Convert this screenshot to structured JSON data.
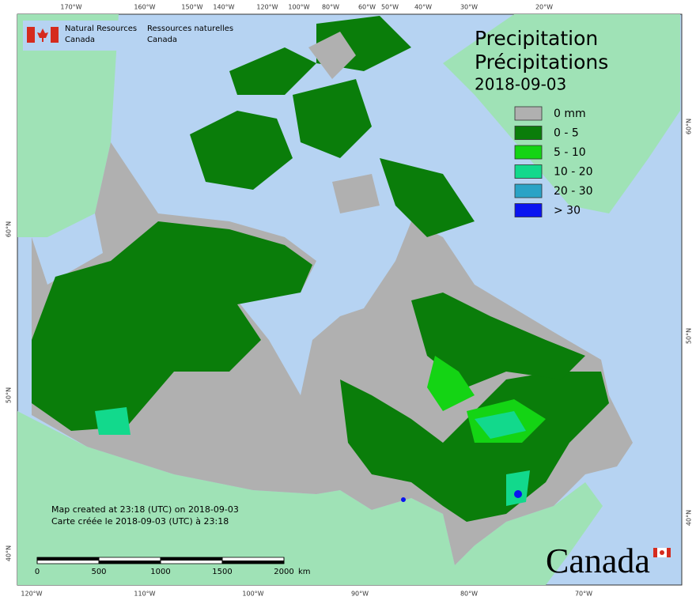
{
  "header": {
    "org_en": [
      "Natural Resources",
      "Canada"
    ],
    "org_fr": [
      "Ressources naturelles",
      "Canada"
    ]
  },
  "title": {
    "en": "Precipitation",
    "fr": "Précipitations",
    "date": "2018-09-03"
  },
  "legend": [
    {
      "label": "0 mm",
      "color": "#b0b0b0"
    },
    {
      "label": "0 - 5",
      "color": "#0a7d0a"
    },
    {
      "label": "5 - 10",
      "color": "#14d414"
    },
    {
      "label": "10 - 20",
      "color": "#12d98c"
    },
    {
      "label": "20 - 30",
      "color": "#2aa3c6"
    },
    {
      "label": "> 30",
      "color": "#0a14f0"
    }
  ],
  "graticule": {
    "top": [
      "170°W",
      "160°W",
      "150°W",
      "140°W",
      "120°W",
      "100°W",
      "80°W",
      "60°W",
      "50°W",
      "40°W",
      "30°W",
      "20°W"
    ],
    "bottom": [
      "120°W",
      "110°W",
      "100°W",
      "90°W",
      "80°W",
      "70°W"
    ],
    "left": [
      "60°N",
      "50°N",
      "40°N"
    ],
    "right": [
      "60°N",
      "50°N",
      "40°N"
    ]
  },
  "credits": [
    "Map created at 23:18 (UTC) on 2018-09-03",
    "Carte créée le 2018-09-03 (UTC) à 23:18"
  ],
  "scale": {
    "ticks": [
      0,
      500,
      1000,
      1500,
      2000
    ],
    "unit": "km"
  },
  "wordmark": "Canada"
}
